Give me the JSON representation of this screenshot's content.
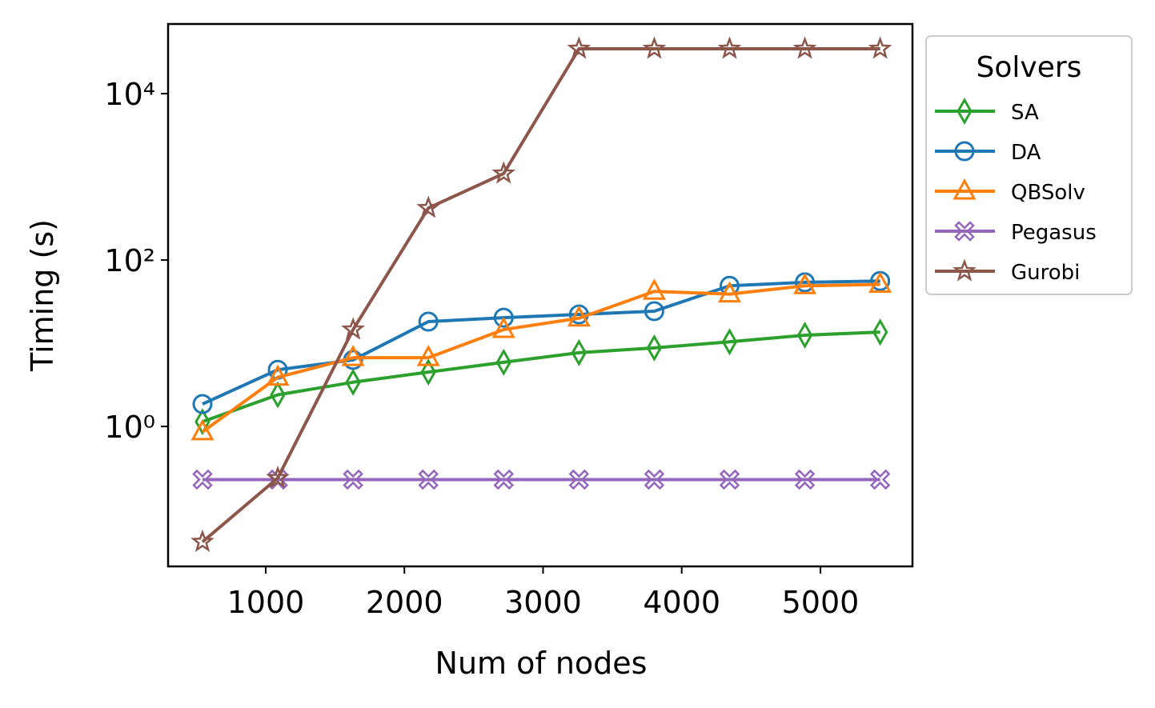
{
  "chart_data": {
    "type": "line",
    "xlabel": "Num of nodes",
    "ylabel": "Timing (s)",
    "x": [
      544,
      1087,
      1630,
      2173,
      2716,
      3259,
      3802,
      4345,
      4888,
      5431
    ],
    "xlim": [
      296,
      5664
    ],
    "xticks": [
      1000,
      2000,
      3000,
      4000,
      5000
    ],
    "ylim": [
      0.0208,
      68700
    ],
    "yscale": "log",
    "yticks": [
      {
        "value": 1,
        "label": "10⁰"
      },
      {
        "value": 100,
        "label": "10²"
      },
      {
        "value": 10000,
        "label": "10⁴"
      }
    ],
    "legend_title": "Solvers",
    "legend": "outside-upper-right",
    "series": [
      {
        "name": "SA",
        "color": "#2ca02c",
        "marker": "diamond",
        "values": [
          1.14,
          2.4,
          3.4,
          4.5,
          5.9,
          7.7,
          8.8,
          10.4,
          12.5,
          13.6
        ]
      },
      {
        "name": "DA",
        "color": "#1f77b4",
        "marker": "circle",
        "values": [
          1.86,
          4.8,
          6.3,
          18.2,
          20.3,
          22.2,
          24.3,
          49,
          54,
          56
        ]
      },
      {
        "name": "QBSolv",
        "color": "#ff7f0e",
        "marker": "triangle",
        "values": [
          0.86,
          3.9,
          6.7,
          6.7,
          14.6,
          20,
          42,
          39,
          49,
          51
        ]
      },
      {
        "name": "Pegasus",
        "color": "#9467bd",
        "marker": "x",
        "values": [
          0.23,
          0.23,
          0.23,
          0.23,
          0.23,
          0.23,
          0.23,
          0.23,
          0.23,
          0.23
        ]
      },
      {
        "name": "Gurobi",
        "color": "#8c564b",
        "marker": "star",
        "values": [
          0.041,
          0.24,
          14.6,
          422,
          1096,
          34600,
          34600,
          34600,
          34600,
          34600
        ]
      }
    ]
  }
}
